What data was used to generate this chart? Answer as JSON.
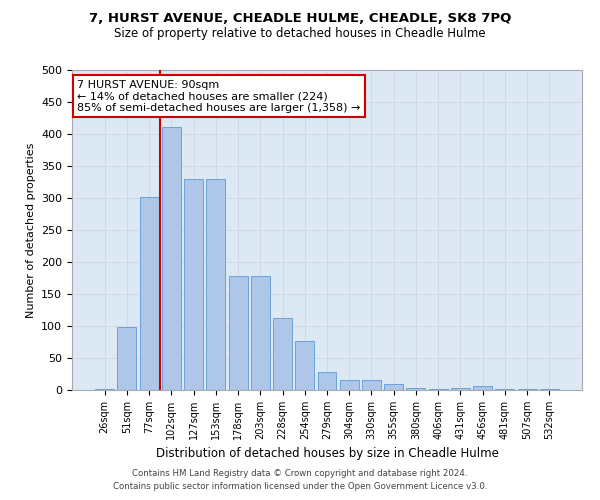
{
  "title1": "7, HURST AVENUE, CHEADLE HULME, CHEADLE, SK8 7PQ",
  "title2": "Size of property relative to detached houses in Cheadle Hulme",
  "xlabel": "Distribution of detached houses by size in Cheadle Hulme",
  "ylabel": "Number of detached properties",
  "categories": [
    "26sqm",
    "51sqm",
    "77sqm",
    "102sqm",
    "127sqm",
    "153sqm",
    "178sqm",
    "203sqm",
    "228sqm",
    "254sqm",
    "279sqm",
    "304sqm",
    "330sqm",
    "355sqm",
    "380sqm",
    "406sqm",
    "431sqm",
    "456sqm",
    "481sqm",
    "507sqm",
    "532sqm"
  ],
  "values": [
    1,
    99,
    301,
    411,
    330,
    330,
    178,
    178,
    112,
    76,
    28,
    15,
    15,
    10,
    3,
    1,
    3,
    6,
    2,
    2,
    1
  ],
  "bar_color": "#aec6e8",
  "bar_edge_color": "#5b9bd5",
  "grid_color": "#d0d8e4",
  "bg_color": "#dce9f5",
  "vline_color": "#cc0000",
  "vline_pos": 2.5,
  "annotation_text": "7 HURST AVENUE: 90sqm\n← 14% of detached houses are smaller (224)\n85% of semi-detached houses are larger (1,358) →",
  "annotation_box_facecolor": "#ffffff",
  "annotation_box_edgecolor": "#cc0000",
  "footer1": "Contains HM Land Registry data © Crown copyright and database right 2024.",
  "footer2": "Contains public sector information licensed under the Open Government Licence v3.0.",
  "ylim": [
    0,
    500
  ],
  "yticks": [
    0,
    50,
    100,
    150,
    200,
    250,
    300,
    350,
    400,
    450,
    500
  ]
}
